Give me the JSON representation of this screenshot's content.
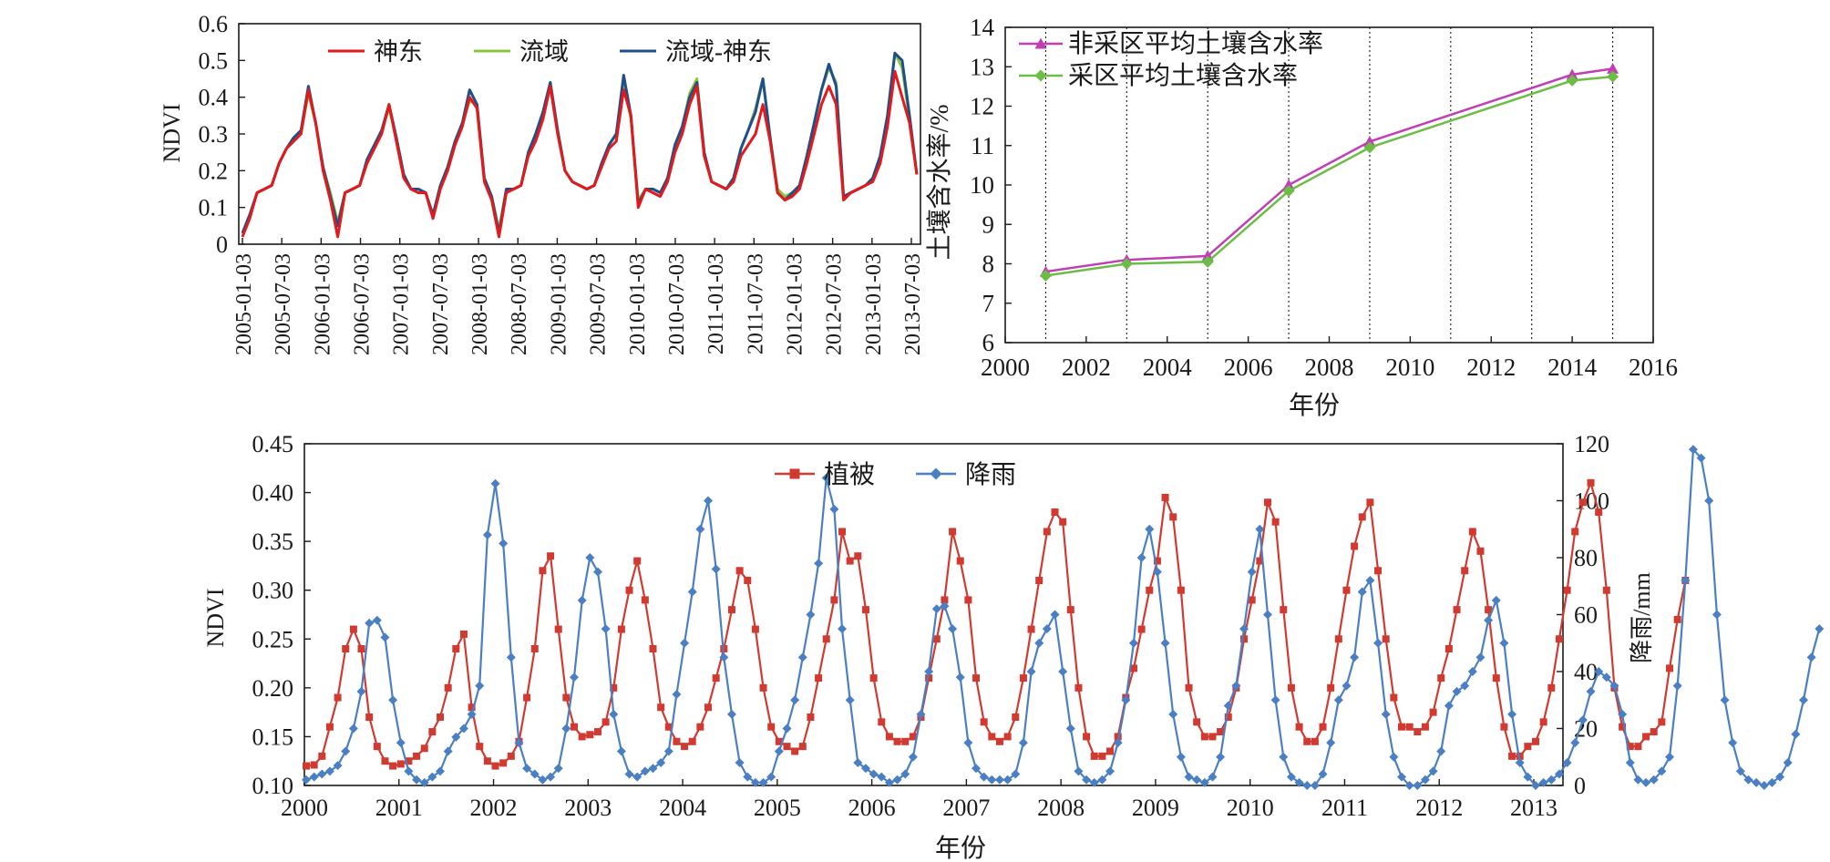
{
  "chart_data": [
    {
      "type": "line",
      "ylabel": "NDVI",
      "ylim": [
        0,
        0.6
      ],
      "yticks": [
        "0",
        "0.1",
        "0.2",
        "0.3",
        "0.4",
        "0.5",
        "0.6"
      ],
      "xticks": [
        "2005-01-03",
        "2005-07-03",
        "2006-01-03",
        "2006-07-03",
        "2007-01-03",
        "2007-07-03",
        "2008-01-03",
        "2008-07-03",
        "2009-01-03",
        "2009-07-03",
        "2010-01-03",
        "2010-07-03",
        "2011-01-03",
        "2011-07-03",
        "2012-01-03",
        "2012-07-03",
        "2013-01-03",
        "2013-07-03"
      ],
      "legend_position": "top-center",
      "series": [
        {
          "name": "神东",
          "color": "#e31a1c",
          "values": [
            0.02,
            0.07,
            0.14,
            0.15,
            0.16,
            0.22,
            0.26,
            0.28,
            0.3,
            0.42,
            0.33,
            0.2,
            0.12,
            0.02,
            0.14,
            0.15,
            0.16,
            0.22,
            0.26,
            0.3,
            0.38,
            0.28,
            0.18,
            0.15,
            0.14,
            0.14,
            0.07,
            0.15,
            0.2,
            0.27,
            0.32,
            0.4,
            0.37,
            0.17,
            0.12,
            0.02,
            0.14,
            0.15,
            0.16,
            0.24,
            0.28,
            0.34,
            0.43,
            0.3,
            0.2,
            0.17,
            0.16,
            0.15,
            0.16,
            0.21,
            0.26,
            0.28,
            0.42,
            0.35,
            0.1,
            0.15,
            0.14,
            0.13,
            0.17,
            0.25,
            0.3,
            0.38,
            0.43,
            0.24,
            0.17,
            0.16,
            0.15,
            0.17,
            0.24,
            0.27,
            0.3,
            0.38,
            0.28,
            0.14,
            0.12,
            0.13,
            0.15,
            0.22,
            0.3,
            0.38,
            0.43,
            0.38,
            0.12,
            0.14,
            0.15,
            0.16,
            0.17,
            0.22,
            0.32,
            0.47,
            0.4,
            0.33,
            0.19
          ]
        },
        {
          "name": "流域",
          "color": "#8cc63f",
          "values": [
            0.03,
            0.08,
            0.14,
            0.15,
            0.16,
            0.22,
            0.26,
            0.29,
            0.31,
            0.41,
            0.33,
            0.21,
            0.14,
            0.06,
            0.14,
            0.15,
            0.16,
            0.23,
            0.27,
            0.31,
            0.37,
            0.29,
            0.19,
            0.15,
            0.15,
            0.14,
            0.08,
            0.16,
            0.21,
            0.28,
            0.33,
            0.39,
            0.38,
            0.18,
            0.13,
            0.04,
            0.15,
            0.15,
            0.16,
            0.25,
            0.3,
            0.36,
            0.44,
            0.31,
            0.2,
            0.17,
            0.16,
            0.15,
            0.16,
            0.22,
            0.27,
            0.3,
            0.44,
            0.34,
            0.12,
            0.15,
            0.15,
            0.14,
            0.18,
            0.27,
            0.32,
            0.41,
            0.45,
            0.25,
            0.17,
            0.16,
            0.15,
            0.18,
            0.26,
            0.31,
            0.37,
            0.45,
            0.29,
            0.15,
            0.13,
            0.14,
            0.16,
            0.24,
            0.33,
            0.42,
            0.48,
            0.44,
            0.13,
            0.14,
            0.15,
            0.16,
            0.18,
            0.24,
            0.35,
            0.52,
            0.48,
            0.34,
            0.19
          ]
        },
        {
          "name": "流域-神东",
          "color": "#1f4e8c",
          "values": [
            0.03,
            0.08,
            0.14,
            0.15,
            0.16,
            0.22,
            0.26,
            0.29,
            0.31,
            0.43,
            0.33,
            0.21,
            0.13,
            0.05,
            0.14,
            0.15,
            0.16,
            0.23,
            0.27,
            0.31,
            0.38,
            0.29,
            0.19,
            0.15,
            0.15,
            0.14,
            0.08,
            0.16,
            0.21,
            0.28,
            0.33,
            0.42,
            0.38,
            0.18,
            0.13,
            0.03,
            0.15,
            0.15,
            0.16,
            0.25,
            0.3,
            0.36,
            0.44,
            0.31,
            0.2,
            0.17,
            0.16,
            0.15,
            0.16,
            0.22,
            0.27,
            0.3,
            0.46,
            0.35,
            0.11,
            0.15,
            0.15,
            0.14,
            0.18,
            0.27,
            0.32,
            0.4,
            0.44,
            0.25,
            0.17,
            0.16,
            0.15,
            0.18,
            0.26,
            0.31,
            0.36,
            0.45,
            0.29,
            0.14,
            0.12,
            0.14,
            0.16,
            0.24,
            0.33,
            0.42,
            0.49,
            0.43,
            0.13,
            0.14,
            0.15,
            0.16,
            0.18,
            0.24,
            0.35,
            0.52,
            0.5,
            0.35,
            0.19
          ]
        }
      ]
    },
    {
      "type": "line",
      "xlabel": "年份",
      "ylabel": "土壤含水率/%",
      "xlim": [
        2000,
        2016
      ],
      "ylim": [
        6,
        14
      ],
      "xticks": [
        "2000",
        "2002",
        "2004",
        "2006",
        "2008",
        "2010",
        "2012",
        "2014",
        "2016"
      ],
      "yticks": [
        "6",
        "7",
        "8",
        "9",
        "10",
        "11",
        "12",
        "13",
        "14"
      ],
      "grid_vertical": [
        2001,
        2003,
        2005,
        2007,
        2009,
        2011,
        2013,
        2015
      ],
      "legend_position": "top-left",
      "series": [
        {
          "name": "非采区平均土壤含水率",
          "color": "#c03fb5",
          "marker": "triangle",
          "x": [
            2001,
            2003,
            2005,
            2007,
            2009,
            2014,
            2015
          ],
          "y": [
            7.8,
            8.1,
            8.2,
            10.0,
            11.1,
            12.8,
            12.95
          ]
        },
        {
          "name": "采区平均土壤含水率",
          "color": "#6cbd45",
          "marker": "diamond",
          "x": [
            2001,
            2003,
            2005,
            2007,
            2009,
            2014,
            2015
          ],
          "y": [
            7.7,
            8.0,
            8.05,
            9.85,
            10.95,
            12.65,
            12.75
          ]
        }
      ]
    },
    {
      "type": "line",
      "xlabel": "年份",
      "ylabel": "NDVI",
      "y2label": "降雨/mm",
      "ylim": [
        0.1,
        0.45
      ],
      "y2lim": [
        0,
        120
      ],
      "xticks": [
        "2000",
        "2001",
        "2002",
        "2003",
        "2004",
        "2005",
        "2006",
        "2007",
        "2008",
        "2009",
        "2010",
        "2011",
        "2012",
        "2013"
      ],
      "yticks": [
        "0.10",
        "0.15",
        "0.20",
        "0.25",
        "0.30",
        "0.35",
        "0.40",
        "0.45"
      ],
      "y2ticks": [
        "0",
        "20",
        "40",
        "60",
        "80",
        "100",
        "120"
      ],
      "legend_position": "top-center",
      "series": [
        {
          "name": "植被",
          "color": "#d03a30",
          "marker": "square",
          "axis": "left",
          "values": [
            0.12,
            0.121,
            0.13,
            0.16,
            0.19,
            0.24,
            0.26,
            0.24,
            0.17,
            0.14,
            0.125,
            0.12,
            0.122,
            0.125,
            0.13,
            0.138,
            0.155,
            0.17,
            0.2,
            0.24,
            0.255,
            0.18,
            0.14,
            0.125,
            0.12,
            0.123,
            0.13,
            0.145,
            0.19,
            0.24,
            0.32,
            0.335,
            0.26,
            0.19,
            0.16,
            0.15,
            0.152,
            0.155,
            0.165,
            0.2,
            0.26,
            0.3,
            0.33,
            0.29,
            0.24,
            0.18,
            0.16,
            0.145,
            0.14,
            0.145,
            0.16,
            0.18,
            0.21,
            0.24,
            0.28,
            0.32,
            0.31,
            0.26,
            0.2,
            0.16,
            0.145,
            0.14,
            0.135,
            0.14,
            0.17,
            0.21,
            0.25,
            0.29,
            0.36,
            0.33,
            0.335,
            0.28,
            0.21,
            0.165,
            0.15,
            0.145,
            0.145,
            0.15,
            0.17,
            0.21,
            0.25,
            0.29,
            0.36,
            0.33,
            0.29,
            0.21,
            0.165,
            0.15,
            0.145,
            0.15,
            0.17,
            0.21,
            0.26,
            0.31,
            0.36,
            0.38,
            0.37,
            0.28,
            0.2,
            0.15,
            0.13,
            0.13,
            0.135,
            0.15,
            0.19,
            0.22,
            0.26,
            0.3,
            0.33,
            0.395,
            0.375,
            0.3,
            0.2,
            0.165,
            0.15,
            0.15,
            0.155,
            0.17,
            0.2,
            0.25,
            0.29,
            0.33,
            0.39,
            0.37,
            0.28,
            0.2,
            0.16,
            0.145,
            0.145,
            0.16,
            0.2,
            0.25,
            0.3,
            0.345,
            0.375,
            0.39,
            0.32,
            0.25,
            0.19,
            0.16,
            0.16,
            0.155,
            0.16,
            0.175,
            0.21,
            0.24,
            0.28,
            0.32,
            0.36,
            0.34,
            0.28,
            0.21,
            0.16,
            0.13,
            0.13,
            0.14,
            0.145,
            0.165,
            0.2,
            0.25,
            0.3,
            0.36,
            0.39,
            0.41,
            0.38,
            0.3,
            0.2,
            0.16,
            0.14,
            0.14,
            0.15,
            0.155,
            0.165,
            0.22,
            0.27,
            0.31
          ]
        },
        {
          "name": "降雨",
          "color": "#4a7fc4",
          "marker": "diamond",
          "axis": "right",
          "values": [
            2,
            3,
            4,
            5,
            7,
            12,
            20,
            33,
            57,
            58,
            52,
            30,
            15,
            5,
            2,
            1,
            3,
            5,
            12,
            17,
            20,
            25,
            35,
            88,
            106,
            85,
            45,
            15,
            6,
            4,
            2,
            3,
            6,
            20,
            38,
            65,
            80,
            75,
            55,
            25,
            12,
            4,
            3,
            5,
            6,
            8,
            12,
            32,
            50,
            68,
            90,
            100,
            76,
            45,
            25,
            8,
            3,
            1,
            1,
            3,
            12,
            20,
            30,
            45,
            60,
            78,
            108,
            97,
            55,
            30,
            8,
            6,
            4,
            3,
            1,
            2,
            4,
            10,
            25,
            40,
            62,
            63,
            55,
            38,
            15,
            6,
            3,
            2,
            2,
            2,
            4,
            15,
            40,
            50,
            55,
            60,
            40,
            20,
            5,
            2,
            1,
            2,
            5,
            15,
            30,
            50,
            80,
            90,
            75,
            50,
            25,
            10,
            3,
            2,
            1,
            3,
            10,
            28,
            35,
            55,
            75,
            90,
            60,
            30,
            10,
            3,
            1,
            0,
            0,
            4,
            15,
            30,
            35,
            45,
            68,
            72,
            50,
            25,
            10,
            3,
            0,
            0,
            2,
            5,
            12,
            28,
            33,
            35,
            40,
            45,
            58,
            65,
            50,
            25,
            8,
            3,
            0,
            1,
            2,
            4,
            8,
            15,
            23,
            33,
            40,
            38,
            35,
            25,
            8,
            2,
            1,
            2,
            5,
            10,
            35,
            72,
            118,
            115,
            100,
            60,
            30,
            15,
            5,
            2,
            1,
            0,
            1,
            3,
            8,
            18,
            30,
            45,
            55
          ]
        }
      ]
    }
  ]
}
